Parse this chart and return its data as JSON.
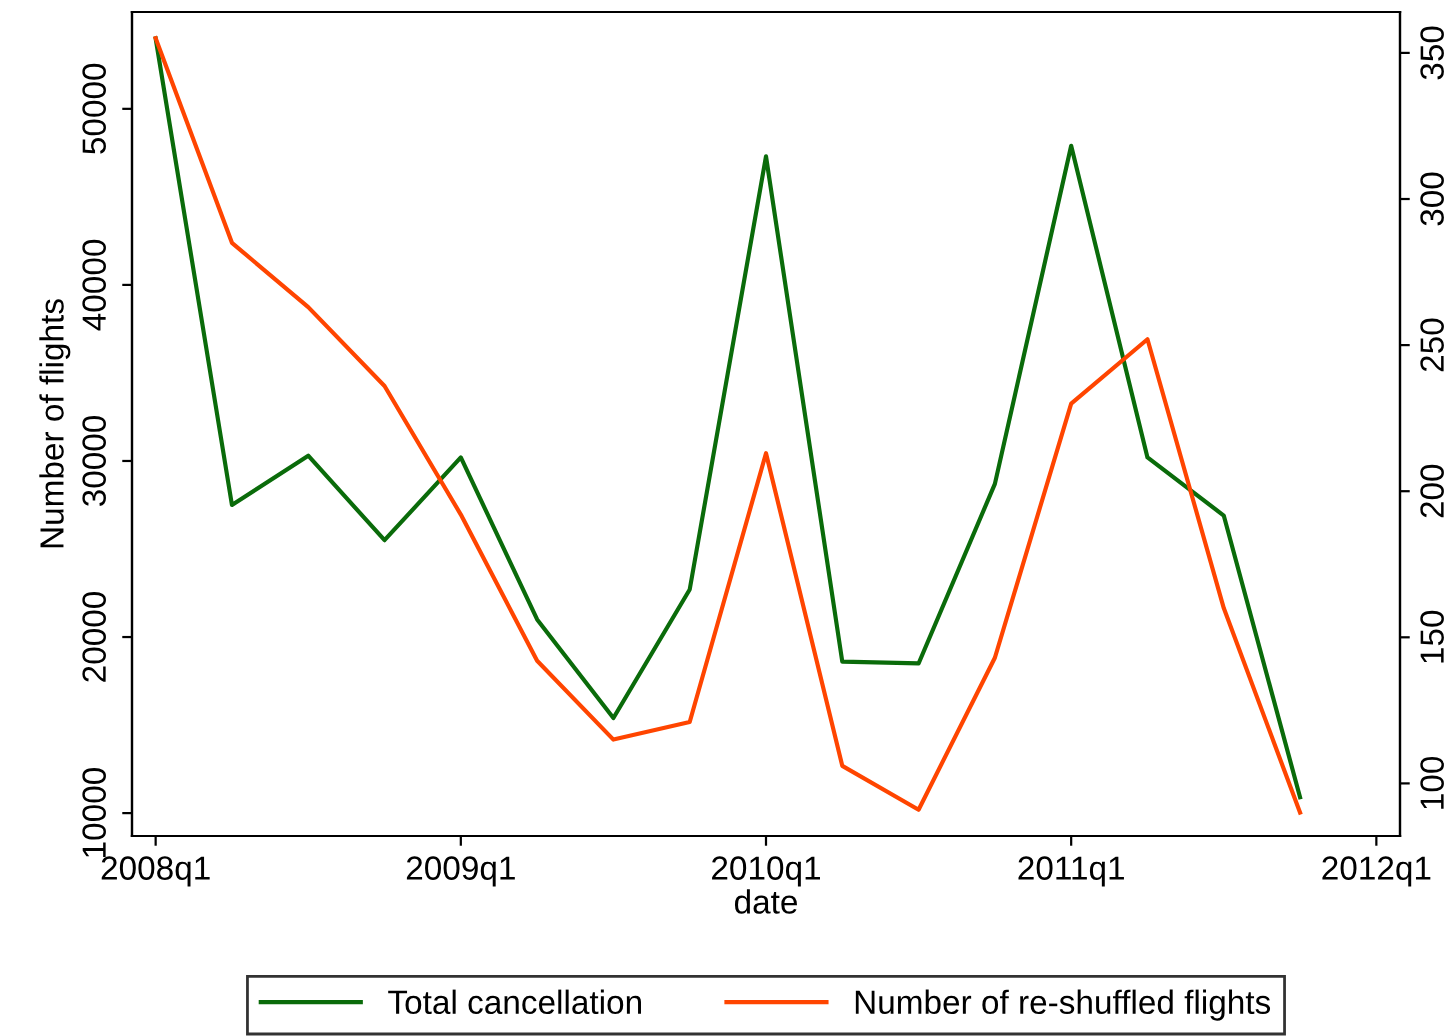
{
  "chart_data": {
    "type": "line",
    "xlabel": "date",
    "ylabel": "Number of flights",
    "categories": [
      "2008q1",
      null,
      null,
      null,
      "2009q1",
      null,
      null,
      null,
      "2010q1",
      null,
      null,
      null,
      "2011q1",
      null,
      null,
      null,
      "2012q1"
    ],
    "series": [
      {
        "name": "Total cancellation",
        "color": "#0a6b0a",
        "values": [
          54000,
          27500,
          30300,
          25500,
          30200,
          21000,
          15400,
          22700,
          47300,
          18600,
          18500,
          28700,
          47900,
          30200,
          26900,
          10900,
          null
        ]
      },
      {
        "name": "Number of re-shuffled flights",
        "color": "#ff4500",
        "axis": "y2",
        "values": [
          355,
          285,
          263,
          236,
          192,
          142,
          115,
          121,
          213,
          106,
          91,
          143,
          230,
          252,
          160,
          90,
          null
        ]
      }
    ],
    "ylim": [
      8700,
      55500
    ],
    "yticks": [
      10000,
      20000,
      30000,
      40000,
      50000
    ],
    "y2lim": [
      82,
      364
    ],
    "y2ticks": [
      100,
      150,
      200,
      250,
      300,
      350
    ],
    "grid": false,
    "legend": "bottom"
  }
}
